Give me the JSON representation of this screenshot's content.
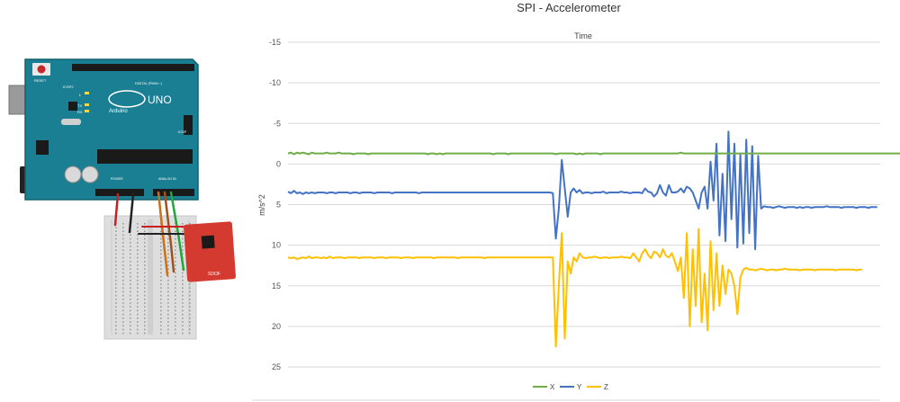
{
  "wiring": {
    "board_logo": "UNO",
    "board_brand": "Arduino",
    "reset_label": "RESET",
    "icsp_label": "ICSP2",
    "icsp_side_label": "ICSP",
    "digital_label": "DIGITAL (PWM=~)",
    "power_label": "POWER",
    "analog_label": "ANALOG IN",
    "tx_label": "TX",
    "rx_label": "RX",
    "l_label": "L",
    "sensor_label": "SDOF",
    "colors": {
      "board": "#1b7f93",
      "board_dark": "#12606f",
      "breadboard": "#dedede",
      "sensor": "#d43a2f",
      "wire_red": "#cc2020",
      "wire_black": "#222222",
      "wire_orange": "#c8701c",
      "wire_brown": "#a0521c",
      "wire_green": "#22a838"
    }
  },
  "chart_data": {
    "type": "line",
    "title": "SPI - Accelerometer",
    "subtitle": "Time",
    "ylabel": "m/s^2",
    "ylim": [
      -15,
      25
    ],
    "y_inverted": true,
    "yticks": [
      -15,
      -10,
      -5,
      0,
      5,
      10,
      15,
      20,
      25
    ],
    "ytick_labels": [
      "-15",
      "-10",
      "-5",
      "0",
      "5",
      "10",
      "15",
      "20",
      "25"
    ],
    "grid": true,
    "legend_position": "bottom",
    "x_count": 200,
    "series": [
      {
        "name": "X",
        "color": "#70ad47",
        "values": [
          -1.3,
          -1.4,
          -1.2,
          -1.4,
          -1.3,
          -1.4,
          -1.3,
          -1.2,
          -1.4,
          -1.3,
          -1.3,
          -1.3,
          -1.3,
          -1.4,
          -1.3,
          -1.3,
          -1.3,
          -1.4,
          -1.3,
          -1.3,
          -1.3,
          -1.3,
          -1.2,
          -1.3,
          -1.3,
          -1.3,
          -1.3,
          -1.2,
          -1.3,
          -1.3,
          -1.3,
          -1.3,
          -1.3,
          -1.3,
          -1.3,
          -1.3,
          -1.3,
          -1.3,
          -1.3,
          -1.3,
          -1.3,
          -1.3,
          -1.3,
          -1.3,
          -1.3,
          -1.3,
          -1.3,
          -1.2,
          -1.3,
          -1.3,
          -1.2,
          -1.3,
          -1.2,
          -1.3,
          -1.3,
          -1.3,
          -1.3,
          -1.3,
          -1.3,
          -1.3,
          -1.3,
          -1.3,
          -1.3,
          -1.3,
          -1.3,
          -1.3,
          -1.3,
          -1.3,
          -1.3,
          -1.2,
          -1.3,
          -1.3,
          -1.3,
          -1.3,
          -1.2,
          -1.3,
          -1.3,
          -1.3,
          -1.3,
          -1.3,
          -1.3,
          -1.3,
          -1.3,
          -1.3,
          -1.3,
          -1.3,
          -1.3,
          -1.3,
          -1.3,
          -1.3,
          -1.2,
          -1.3,
          -1.3,
          -1.3,
          -1.3,
          -1.3,
          -1.3,
          -1.2,
          -1.3,
          -1.2,
          -1.3,
          -1.3,
          -1.3,
          -1.3,
          -1.3,
          -1.2,
          -1.3,
          -1.3,
          -1.3,
          -1.3,
          -1.3,
          -1.3,
          -1.3,
          -1.3,
          -1.3,
          -1.3,
          -1.3,
          -1.3,
          -1.3,
          -1.3,
          -1.3,
          -1.3,
          -1.3,
          -1.3,
          -1.3,
          -1.3,
          -1.3,
          -1.3,
          -1.3,
          -1.3,
          -1.3,
          -1.3,
          -1.4,
          -1.3,
          -1.3,
          -1.3,
          -1.3,
          -1.3,
          -1.3,
          -1.3,
          -1.3,
          -1.3,
          -1.3,
          -1.3,
          -1.3,
          -1.3,
          -1.3,
          -1.3,
          -1.3,
          -1.3,
          -1.3,
          -1.3,
          -1.3,
          -1.3,
          -1.3,
          -1.3,
          -1.3,
          -1.3,
          -1.3,
          -1.3,
          -1.3,
          -1.3,
          -1.3,
          -1.3,
          -1.3,
          -1.3,
          -1.3,
          -1.3,
          -1.3,
          -1.3,
          -1.3,
          -1.3,
          -1.3,
          -1.3,
          -1.3,
          -1.3,
          -1.3,
          -1.3,
          -1.3,
          -1.3,
          -1.3,
          -1.3,
          -1.3,
          -1.3,
          -1.3,
          -1.3,
          -1.3,
          -1.3,
          -1.3,
          -1.3,
          -1.3,
          -1.3,
          -1.3,
          -1.3,
          -1.3,
          -1.3,
          -1.3,
          -1.3,
          -1.3,
          -1.3,
          -1.3,
          -1.3,
          -1.3,
          -1.3,
          -1.3,
          -1.3,
          -1.3,
          -1.3,
          -1.3,
          -1.3,
          -1.3,
          -1.3
        ]
      },
      {
        "name": "Y",
        "color": "#4472c4",
        "values": [
          3.4,
          3.6,
          3.3,
          3.6,
          3.5,
          3.7,
          3.5,
          3.6,
          3.5,
          3.6,
          3.5,
          3.5,
          3.5,
          3.6,
          3.5,
          3.5,
          3.6,
          3.5,
          3.5,
          3.5,
          3.5,
          3.6,
          3.5,
          3.5,
          3.6,
          3.5,
          3.5,
          3.5,
          3.5,
          3.6,
          3.5,
          3.5,
          3.5,
          3.5,
          3.5,
          3.6,
          3.5,
          3.5,
          3.5,
          3.5,
          3.5,
          3.5,
          3.5,
          3.5,
          3.6,
          3.5,
          3.5,
          3.5,
          3.5,
          3.5,
          3.5,
          3.5,
          3.5,
          3.5,
          3.5,
          3.5,
          3.5,
          3.5,
          3.5,
          3.5,
          3.5,
          3.5,
          3.5,
          3.5,
          3.5,
          3.5,
          3.5,
          3.5,
          3.5,
          3.5,
          3.5,
          3.5,
          3.5,
          3.5,
          3.5,
          3.5,
          3.5,
          3.5,
          3.5,
          3.5,
          3.5,
          3.5,
          3.5,
          3.5,
          3.5,
          3.5,
          3.5,
          3.5,
          3.5,
          3.6,
          9.2,
          5.5,
          -0.5,
          3.0,
          6.5,
          3.5,
          3.0,
          3.5,
          3.2,
          3.6,
          3.5,
          3.5,
          3.6,
          3.5,
          3.5,
          3.5,
          3.4,
          3.6,
          3.5,
          3.5,
          3.5,
          3.5,
          3.4,
          3.5,
          3.5,
          3.6,
          3.5,
          3.5,
          3.5,
          3.6,
          3.0,
          3.4,
          3.5,
          4.0,
          3.6,
          2.6,
          3.5,
          3.9,
          2.6,
          3.5,
          3.5,
          3.4,
          3.0,
          3.5,
          2.8,
          3.0,
          3.5,
          4.5,
          5.5,
          3.5,
          2.8,
          5.5,
          -0.3,
          4.5,
          -2.5,
          8.8,
          1.2,
          9.5,
          -4.0,
          6.8,
          -2.5,
          10.3,
          -1.2,
          9.8,
          -3.0,
          8.5,
          -2.2,
          10.5,
          -1.0,
          5.5,
          5.2,
          5.3,
          5.3,
          5.4,
          5.3,
          5.2,
          5.3,
          5.4,
          5.3,
          5.3,
          5.3,
          5.4,
          5.3,
          5.4,
          5.3,
          5.3,
          5.4,
          5.3,
          5.3,
          5.3,
          5.3,
          5.2,
          5.3,
          5.3,
          5.3,
          5.3,
          5.4,
          5.3,
          5.3,
          5.3,
          5.3,
          5.4,
          5.3,
          5.3,
          5.3,
          5.4,
          5.3,
          5.3,
          5.3
        ]
      },
      {
        "name": "Z",
        "color": "#ffc000",
        "values": [
          11.5,
          11.6,
          11.5,
          11.7,
          11.6,
          11.5,
          11.6,
          11.4,
          11.6,
          11.5,
          11.5,
          11.6,
          11.5,
          11.6,
          11.4,
          11.6,
          11.5,
          11.5,
          11.5,
          11.6,
          11.5,
          11.5,
          11.5,
          11.5,
          11.6,
          11.5,
          11.5,
          11.5,
          11.5,
          11.6,
          11.5,
          11.5,
          11.5,
          11.6,
          11.5,
          11.5,
          11.5,
          11.5,
          11.6,
          11.5,
          11.5,
          11.5,
          11.6,
          11.5,
          11.5,
          11.5,
          11.5,
          11.5,
          11.5,
          11.6,
          11.5,
          11.5,
          11.5,
          11.5,
          11.5,
          11.5,
          11.5,
          11.6,
          11.5,
          11.5,
          11.5,
          11.5,
          11.5,
          11.5,
          11.5,
          11.5,
          11.6,
          11.5,
          11.5,
          11.5,
          11.5,
          11.5,
          11.5,
          11.5,
          11.5,
          11.5,
          11.5,
          11.5,
          11.5,
          11.5,
          11.5,
          11.5,
          11.5,
          11.5,
          11.5,
          11.5,
          11.5,
          11.5,
          11.5,
          11.5,
          22.5,
          15.0,
          8.5,
          21.5,
          12.0,
          13.5,
          11.5,
          12.0,
          11.0,
          11.5,
          11.6,
          11.5,
          11.5,
          11.4,
          11.5,
          11.6,
          11.5,
          11.5,
          11.6,
          11.5,
          11.5,
          11.5,
          11.4,
          11.5,
          11.5,
          11.6,
          11.0,
          11.5,
          12.0,
          11.0,
          10.5,
          11.2,
          11.6,
          10.8,
          11.0,
          11.5,
          10.5,
          11.3,
          11.5,
          11.0,
          12.0,
          13.2,
          11.5,
          16.5,
          8.5,
          20.0,
          10.5,
          17.5,
          8.0,
          19.5,
          13.5,
          20.5,
          9.5,
          18.0,
          11.0,
          17.5,
          12.5,
          16.0,
          13.0,
          13.5,
          15.0,
          18.5,
          14.0,
          13.0,
          12.8,
          13.0,
          13.0,
          13.1,
          13.0,
          12.9,
          13.0,
          13.1,
          13.0,
          13.0,
          13.1,
          13.0,
          13.0,
          12.9,
          13.0,
          13.0,
          13.0,
          13.0,
          13.1,
          13.0,
          13.0,
          13.0,
          13.0,
          13.1,
          13.0,
          13.0,
          13.0,
          13.0,
          13.0,
          13.0,
          13.1,
          13.0,
          13.0,
          13.0,
          13.0,
          13.0,
          13.0,
          13.1,
          13.0,
          13.0
        ]
      }
    ]
  }
}
